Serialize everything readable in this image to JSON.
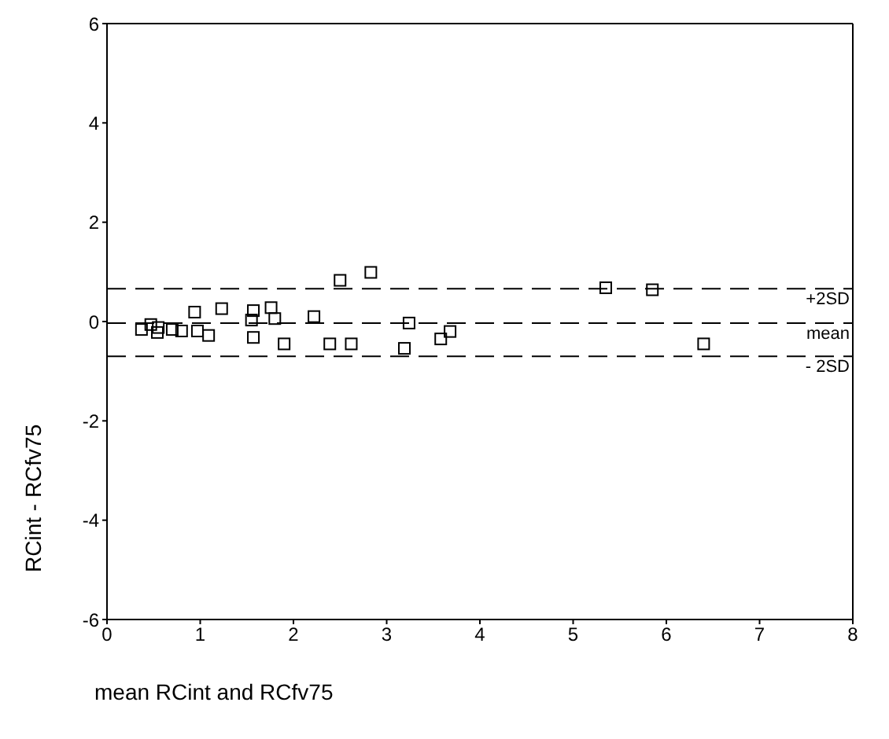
{
  "chart_data": {
    "type": "scatter",
    "xlabel": "mean RCint and RCfv75",
    "ylabel": "RCint - RCfv75",
    "x": [
      0.37,
      0.47,
      0.54,
      0.55,
      0.7,
      0.8,
      0.94,
      0.97,
      1.09,
      1.23,
      1.55,
      1.57,
      1.57,
      1.76,
      1.8,
      1.9,
      2.22,
      2.39,
      2.5,
      2.62,
      2.83,
      3.19,
      3.24,
      3.58,
      3.68,
      5.35,
      5.85,
      6.4
    ],
    "values": [
      -0.16,
      -0.06,
      -0.22,
      -0.12,
      -0.16,
      -0.19,
      0.19,
      -0.19,
      -0.28,
      0.26,
      0.03,
      0.22,
      -0.32,
      0.28,
      0.06,
      -0.45,
      0.1,
      -0.45,
      0.83,
      -0.45,
      0.99,
      -0.54,
      -0.03,
      -0.35,
      -0.2,
      0.68,
      0.64,
      -0.45
    ],
    "color": "#000000",
    "marker": "square",
    "xlim": [
      0,
      8
    ],
    "xticks": [
      0,
      1,
      2,
      3,
      4,
      5,
      6,
      7,
      8
    ],
    "ylim": [
      -6,
      6
    ],
    "yticks": [
      -6,
      -4,
      -2,
      0,
      2,
      4,
      6
    ],
    "grid": false,
    "ref_lines": [
      {
        "axis": "y",
        "value": 0.66,
        "label": "+2SD",
        "line_style": "dashed"
      },
      {
        "axis": "y",
        "value": -0.03,
        "label": "mean",
        "line_style": "dashed"
      },
      {
        "axis": "y",
        "value": -0.7,
        "label": "- 2SD",
        "line_style": "dashed"
      }
    ]
  }
}
